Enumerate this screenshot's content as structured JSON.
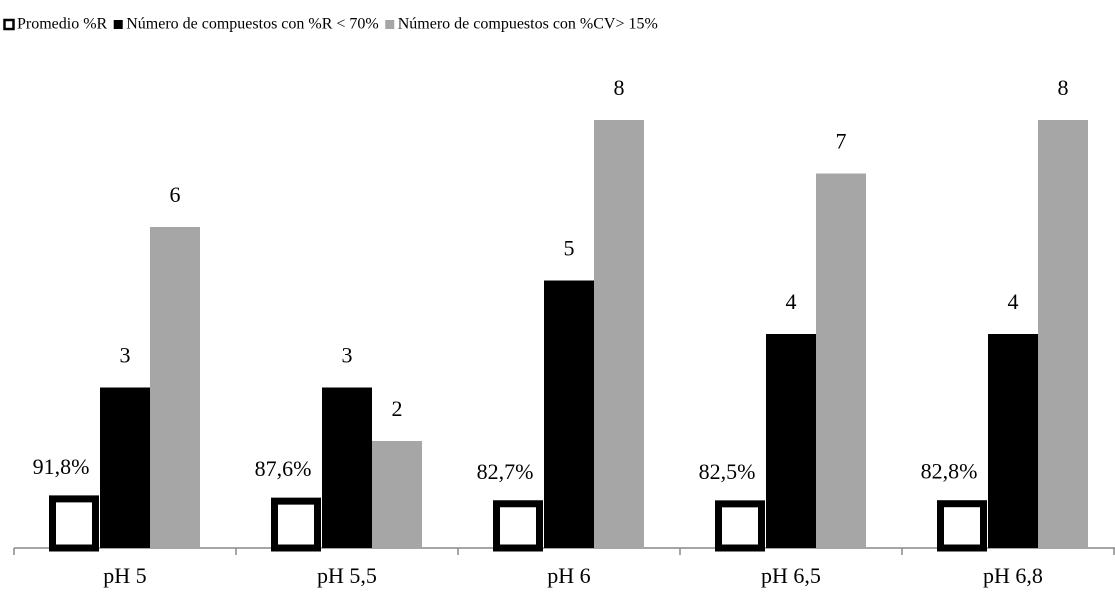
{
  "chart_data": {
    "type": "bar",
    "categories": [
      "pH 5",
      "pH 5,5",
      "pH 6",
      "pH 6,5",
      "pH 6,8"
    ],
    "series": [
      {
        "name": "Promedio %R",
        "color": "#ffffff",
        "values": [
          91.8,
          87.6,
          82.7,
          82.5,
          82.8
        ],
        "value_labels": [
          "91,8%",
          "87,6%",
          "82,7%",
          "82,5%",
          "82,8%"
        ],
        "axis": "y2"
      },
      {
        "name": "Número de compuestos con %R < 70%",
        "color": "#000000",
        "values": [
          3,
          3,
          5,
          4,
          4
        ]
      },
      {
        "name": "Número de compuestos con %CV> 15%",
        "color": "#a6a6a6",
        "values": [
          6,
          2,
          8,
          7,
          8
        ]
      }
    ],
    "ylim": [
      0,
      9
    ],
    "y2lim": [
      0,
      900
    ],
    "legend": "top-left"
  }
}
